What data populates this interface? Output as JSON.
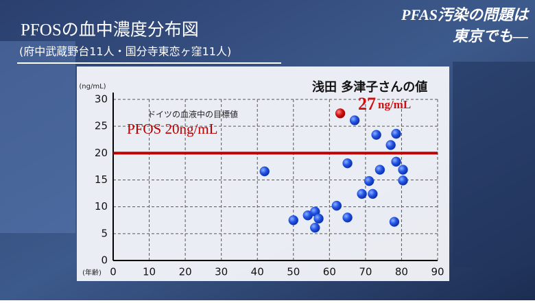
{
  "chart_data": {
    "type": "scatter",
    "title": "PFOSの血中濃度分布図",
    "subtitle": "(府中武蔵野台11人・国分寺東恋ヶ窪11人)",
    "headline": [
      "PFAS汚染の問題は",
      "東京でも―"
    ],
    "x_label": "(年齢)",
    "y_label": "(ng/mL)",
    "xlim": [
      0,
      90
    ],
    "xticks": [
      0,
      10,
      20,
      30,
      40,
      50,
      60,
      70,
      80,
      90
    ],
    "ylim": [
      0,
      30
    ],
    "yticks": [
      0,
      5,
      10,
      15,
      20,
      25,
      30
    ],
    "grid": true,
    "reference_line": {
      "value": 20,
      "color": "#b80000",
      "label": "PFOS 20ng/mL",
      "note": "ドイツの血液中の目標値"
    },
    "series": [
      {
        "color": "#1f4fe0",
        "x": [
          42,
          50,
          54,
          56,
          57,
          56,
          62,
          65,
          65,
          67,
          69,
          71,
          72,
          73,
          74,
          77,
          78.5,
          78.5,
          78,
          80.4,
          80.4
        ],
        "values": [
          16.6,
          7.5,
          8.4,
          9.1,
          7.8,
          6.1,
          10.2,
          8.0,
          18.1,
          26.1,
          12.4,
          14.8,
          12.4,
          23.4,
          16.9,
          21.5,
          23.6,
          18.4,
          7.2,
          16.9,
          14.9
        ]
      },
      {
        "name": "浅田 多津子さんの値",
        "color": "#d01010",
        "x": [
          63
        ],
        "values": [
          27.4
        ],
        "value_labels": [
          "27"
        ],
        "value_unit": "ng/mL"
      }
    ]
  }
}
